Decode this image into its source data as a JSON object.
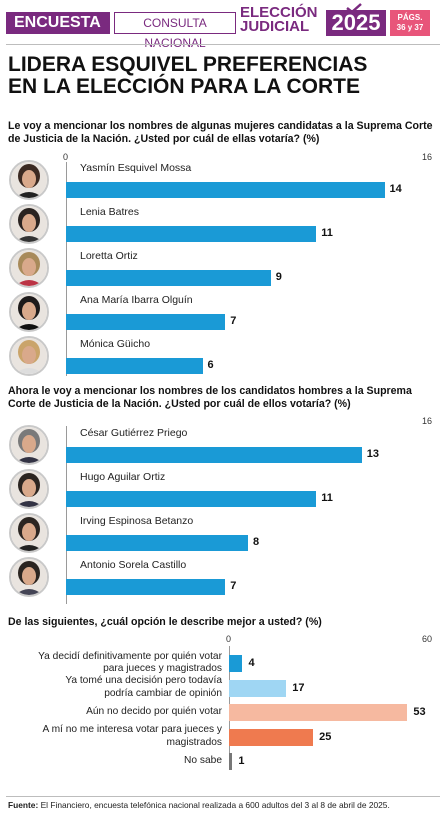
{
  "header": {
    "section": "ENCUESTA",
    "subsection": "CONSULTA NACIONAL",
    "event_line1": "ELECCIÓN",
    "event_line2": "JUDICIAL",
    "year": "2025",
    "pages_line1": "PÁGS.",
    "pages_line2": "36 y 37"
  },
  "title_line1": "LIDERA ESQUIVEL PREFERENCIAS",
  "title_line2": "EN LA ELECCIÓN PARA LA CORTE",
  "chart_data": [
    {
      "type": "bar",
      "orientation": "horizontal",
      "title": "Le voy a mencionar los nombres de algunas mujeres candidatas a la Suprema Corte de Justicia de la Nación. ¿Usted por cuál de ellas votaría? (%)",
      "xlim": [
        0,
        16
      ],
      "axis_min_label": "0",
      "axis_max_label": "16",
      "color": "#1a9ad6",
      "categories": [
        "Yasmín Esquivel Mossa",
        "Lenia Batres",
        "Loretta Ortiz",
        "Ana María Ibarra Olguín",
        "Mónica Güicho"
      ],
      "values": [
        14,
        11,
        9,
        7,
        6
      ]
    },
    {
      "type": "bar",
      "orientation": "horizontal",
      "title": "Ahora le voy a mencionar los nombres de los candidatos hombres a la Suprema Corte de Justicia de la Nación. ¿Usted por cuál de ellos votaría? (%)",
      "xlim": [
        0,
        16
      ],
      "axis_min_label": "",
      "axis_max_label": "16",
      "color": "#1a9ad6",
      "categories": [
        "César Gutiérrez Priego",
        "Hugo Aguilar Ortiz",
        "Irving Espinosa Betanzo",
        "Antonio Sorela Castillo"
      ],
      "values": [
        13,
        11,
        8,
        7
      ]
    },
    {
      "type": "bar",
      "orientation": "horizontal",
      "title": "De las siguientes, ¿cuál opción le describe mejor a usted? (%)",
      "xlim": [
        0,
        60
      ],
      "axis_min_label": "0",
      "axis_max_label": "60",
      "categories": [
        [
          "Ya decidí definitivamente por quién votar",
          "para jueces y magistrados"
        ],
        [
          "Ya tomé una decisión pero todavía",
          "podría cambiar de opinión"
        ],
        [
          "Aún no decido por quién votar"
        ],
        [
          "A mí no me interesa votar para jueces y",
          "magistrados"
        ],
        [
          "No sabe"
        ]
      ],
      "values": [
        4,
        17,
        53,
        25,
        1
      ],
      "colors": [
        "#1a9ad6",
        "#9fd6f3",
        "#f6b9a0",
        "#ef7a4f",
        "#777777"
      ]
    }
  ],
  "source_label": "Fuente:",
  "source_text": " El Financiero, encuesta telefónica nacional realizada a 600 adultos del 3 al 8 de abril de 2025."
}
